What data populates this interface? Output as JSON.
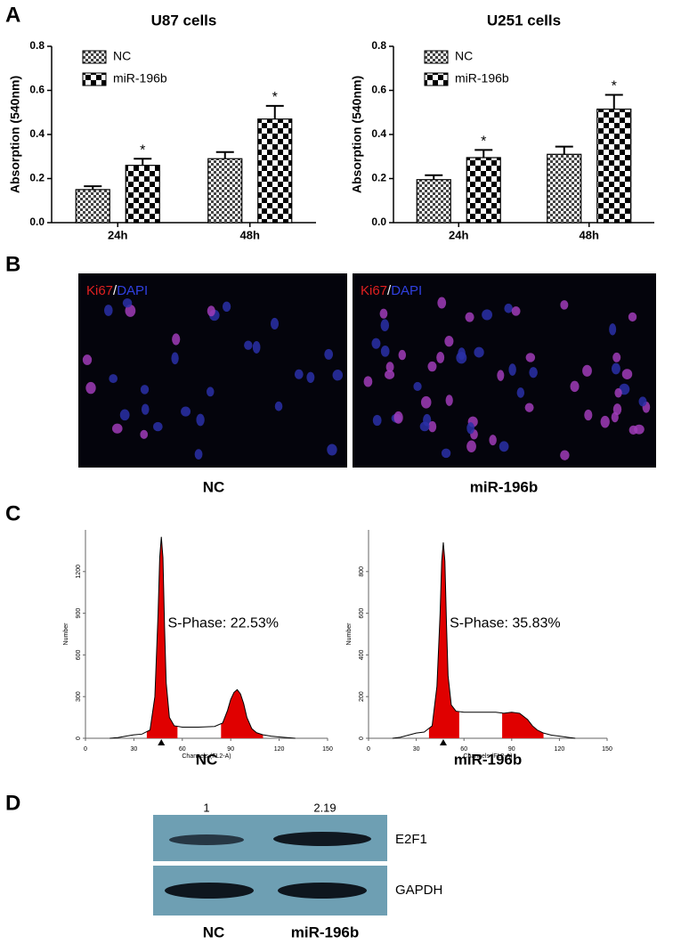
{
  "panel_labels": [
    "A",
    "B",
    "C",
    "D"
  ],
  "chart_data": [
    {
      "type": "bar",
      "title": "U87 cells",
      "ylabel": "Absorption (540nm)",
      "categories": [
        "24h",
        "48h"
      ],
      "series": [
        {
          "name": "NC",
          "color": "#444444",
          "values": [
            0.15,
            0.29
          ],
          "errors": [
            0.015,
            0.03
          ]
        },
        {
          "name": "miR-196b",
          "color": "#000000",
          "values": [
            0.26,
            0.47
          ],
          "errors": [
            0.03,
            0.06
          ],
          "significance": [
            "*",
            "*"
          ]
        }
      ],
      "ylim": [
        0,
        0.8
      ],
      "yticks": [
        {
          "value": 0,
          "label": "0.0"
        },
        0.2,
        0.4,
        0.6,
        0.8
      ],
      "legend": "upper left"
    },
    {
      "type": "bar",
      "title": "U251 cells",
      "ylabel": "Absorption (540nm)",
      "categories": [
        "24h",
        "48h"
      ],
      "series": [
        {
          "name": "NC",
          "color": "#444444",
          "values": [
            0.195,
            0.31
          ],
          "errors": [
            0.02,
            0.035
          ]
        },
        {
          "name": "miR-196b",
          "color": "#000000",
          "values": [
            0.295,
            0.515
          ],
          "errors": [
            0.035,
            0.065
          ],
          "significance": [
            "*",
            "*"
          ]
        }
      ],
      "ylim": [
        0,
        0.8
      ],
      "yticks": [
        {
          "value": 0,
          "label": "0.0"
        },
        0.2,
        0.4,
        0.6,
        0.8
      ],
      "legend": "upper left"
    },
    {
      "type": "cytometry",
      "caption": "NC",
      "xlabel": "Channels (FL2-A)",
      "ylabel": "Number",
      "annotation": "S-Phase: 22.53%",
      "color": "#e00000",
      "x": [
        15,
        20,
        25,
        30,
        35,
        40,
        43,
        45,
        46,
        47,
        48,
        49,
        50,
        52,
        55,
        60,
        70,
        80,
        85,
        88,
        90,
        92,
        94,
        96,
        98,
        100,
        103,
        106,
        110,
        115,
        120,
        125,
        130
      ],
      "values": [
        0,
        5,
        15,
        25,
        30,
        60,
        300,
        900,
        1300,
        1450,
        1300,
        800,
        400,
        150,
        90,
        80,
        80,
        85,
        110,
        200,
        280,
        330,
        350,
        320,
        250,
        150,
        70,
        40,
        25,
        15,
        10,
        5,
        0
      ],
      "xlim": [
        0,
        150
      ],
      "xticks": [
        0,
        30,
        60,
        90,
        120,
        150
      ],
      "ylim": [
        0,
        1500
      ],
      "yticks": [
        0,
        300,
        600,
        900,
        1200
      ]
    },
    {
      "type": "cytometry",
      "caption": "miR-196b",
      "xlabel": "Channels (FL2-A)",
      "ylabel": "Number",
      "annotation": "S-Phase: 35.83%",
      "color": "#e00000",
      "x": [
        15,
        20,
        25,
        30,
        35,
        40,
        43,
        45,
        46,
        47,
        48,
        49,
        50,
        52,
        55,
        60,
        70,
        80,
        85,
        90,
        95,
        100,
        103,
        106,
        110,
        115,
        120,
        125,
        130
      ],
      "values": [
        0,
        5,
        15,
        25,
        30,
        60,
        250,
        600,
        850,
        940,
        850,
        550,
        300,
        160,
        130,
        125,
        125,
        125,
        120,
        125,
        120,
        90,
        60,
        40,
        25,
        15,
        10,
        5,
        0
      ],
      "xlim": [
        0,
        150
      ],
      "xticks": [
        0,
        30,
        60,
        90,
        120,
        150
      ],
      "ylim": [
        0,
        1000
      ],
      "yticks": [
        0,
        200,
        400,
        600,
        800
      ]
    }
  ],
  "panel_b": {
    "stain": [
      "Ki67",
      "/",
      "DAPI"
    ],
    "captions": [
      "NC",
      "miR-196b"
    ]
  },
  "panel_d": {
    "ratios": [
      "1",
      "2.19"
    ],
    "bands": [
      "E2F1",
      "GAPDH"
    ],
    "captions": [
      "NC",
      "miR-196b"
    ]
  }
}
